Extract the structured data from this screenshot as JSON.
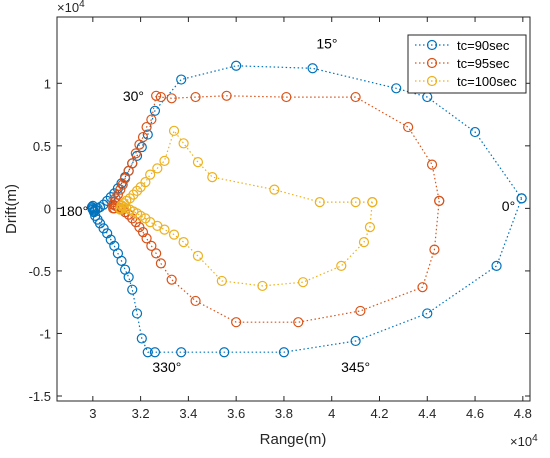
{
  "chart_data": {
    "type": "scatter",
    "xlabel": "Range(m)",
    "ylabel": "Drift(m)",
    "x_exponent_label": "×10",
    "x_exponent_power": "4",
    "y_exponent_label": "×10",
    "y_exponent_power": "4",
    "xlim": [
      28500,
      48300
    ],
    "ylim": [
      -15400,
      15300
    ],
    "x_ticks": [
      30000,
      32000,
      34000,
      36000,
      38000,
      40000,
      42000,
      44000,
      46000,
      48000
    ],
    "x_tick_labels": [
      "3",
      "3.2",
      "3.4",
      "3.6",
      "3.8",
      "4",
      "4.2",
      "4.4",
      "4.6",
      "4.8"
    ],
    "y_ticks": [
      -15000,
      -10000,
      -5000,
      0,
      5000,
      10000
    ],
    "y_tick_labels": [
      "-1.5",
      "-1",
      "-0.5",
      "0",
      "0.5",
      "1"
    ],
    "legend_position": "top-right",
    "series": [
      {
        "name": "tc=90sec",
        "color": "#0072BD",
        "x": [
          47950,
          46000,
          44000,
          42700,
          39200,
          36000,
          33700,
          32600,
          32300,
          32050,
          31850,
          31650,
          31500,
          31350,
          31200,
          31050,
          30900,
          30750,
          30600,
          30450,
          30300,
          30200,
          30100,
          30050,
          30000,
          29980,
          29960,
          30000,
          30050,
          30100,
          30200,
          30300,
          30450,
          30600,
          30750,
          30900,
          31050,
          31200,
          31350,
          31500,
          31650,
          31850,
          32050,
          32300,
          32600,
          33700,
          35500,
          38000,
          41000,
          44000,
          46900,
          47950
        ],
        "y": [
          800,
          6100,
          8900,
          9600,
          11200,
          11400,
          10300,
          7800,
          5900,
          4900,
          4200,
          3600,
          3000,
          2500,
          2000,
          1600,
          1200,
          900,
          600,
          300,
          100,
          0,
          -100,
          -200,
          -100,
          0,
          100,
          200,
          -300,
          -600,
          -900,
          -1200,
          -1600,
          -2000,
          -2500,
          -3000,
          -3600,
          -4200,
          -4900,
          -5500,
          -6500,
          -8400,
          -10400,
          -11500,
          -11500,
          -11500,
          -11500,
          -11500,
          -10600,
          -8400,
          -4600,
          800
        ]
      },
      {
        "name": "tc=95sec",
        "color": "#D95319",
        "x": [
          44500,
          44300,
          43800,
          41200,
          38600,
          36000,
          34300,
          33300,
          32850,
          32650,
          32450,
          32250,
          32100,
          31950,
          31800,
          31650,
          31500,
          31350,
          31250,
          31150,
          31050,
          30950,
          30900,
          30850,
          30850,
          30900,
          30950,
          31050,
          31150,
          31250,
          31350,
          31500,
          31650,
          31800,
          31950,
          32100,
          32250,
          32450,
          32650,
          32850,
          33300,
          34300,
          35600,
          38100,
          41000,
          43200,
          44200,
          44500
        ],
        "y": [
          600,
          -3300,
          -6300,
          -8200,
          -9100,
          -9100,
          -7400,
          -5700,
          -4400,
          -3600,
          -3000,
          -2400,
          -1900,
          -1500,
          -1100,
          -800,
          -500,
          -300,
          -100,
          0,
          100,
          200,
          0,
          0,
          300,
          500,
          800,
          1100,
          1500,
          1900,
          2400,
          3000,
          3600,
          4400,
          5100,
          5700,
          6500,
          7100,
          9000,
          8900,
          8800,
          8900,
          9000,
          8900,
          8900,
          6500,
          3500,
          600
        ]
      },
      {
        "name": "tc=100sec",
        "color": "#EDB120",
        "x": [
          41700,
          41600,
          41350,
          40400,
          38800,
          37100,
          35400,
          34400,
          33800,
          33400,
          33000,
          32700,
          32400,
          32200,
          32000,
          31850,
          31700,
          31550,
          31400,
          31300,
          31200,
          31150,
          31150,
          31200,
          31300,
          31400,
          31550,
          31700,
          31850,
          32000,
          32200,
          32400,
          32700,
          33000,
          33400,
          33800,
          34400,
          35000,
          37600,
          39500,
          41000,
          41700
        ],
        "y": [
          500,
          -1500,
          -2700,
          -4600,
          -5900,
          -6200,
          -5800,
          -3800,
          -2700,
          -2100,
          -1700,
          -1400,
          -1100,
          -800,
          -600,
          -400,
          -250,
          -100,
          0,
          100,
          200,
          0,
          -100,
          250,
          400,
          600,
          800,
          1100,
          1400,
          1700,
          2100,
          2700,
          3200,
          3800,
          6200,
          5200,
          3700,
          2500,
          1500,
          500,
          500,
          500
        ]
      }
    ],
    "annotations": [
      {
        "text": "15°",
        "x": 39800,
        "y": 13200
      },
      {
        "text": "30°",
        "x": 31700,
        "y": 9000
      },
      {
        "text": "180°",
        "x": 29200,
        "y": -200
      },
      {
        "text": "0°",
        "x": 47400,
        "y": 200
      },
      {
        "text": "330°",
        "x": 33100,
        "y": -12700
      },
      {
        "text": "345°",
        "x": 41000,
        "y": -12700
      }
    ]
  }
}
